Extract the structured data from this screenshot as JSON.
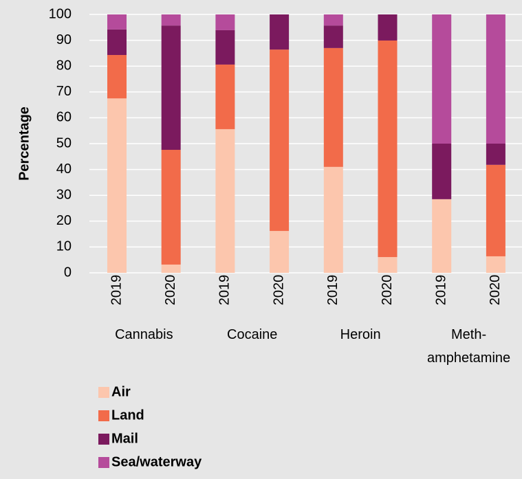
{
  "chart_data": {
    "type": "stacked_bar",
    "y_label": "Percentage",
    "categories": [
      "2019",
      "2020",
      "2019",
      "2020",
      "2019",
      "2020",
      "2019",
      "2020"
    ],
    "groups": [
      "Cannabis",
      "Cocaine",
      "Heroin",
      "Meth-amphetamine"
    ],
    "series": [
      {
        "name": "Air",
        "color": "#fcc6ad",
        "values": [
          67.5,
          3.2,
          55.6,
          16.2,
          41,
          6.1,
          28.5,
          6.4
        ]
      },
      {
        "name": "Land",
        "color": "#f26b4a",
        "values": [
          16.8,
          44.4,
          25,
          70.2,
          46,
          83.8,
          0,
          35.4
        ]
      },
      {
        "name": "Mail",
        "color": "#7b1a5e",
        "values": [
          9.9,
          48.1,
          13.3,
          13.6,
          8.7,
          10.1,
          21.5,
          8.2
        ]
      },
      {
        "name": "Sea/waterway",
        "color": "#b54b9b",
        "values": [
          5.8,
          4.3,
          6.1,
          0,
          4.3,
          0,
          50,
          50
        ]
      }
    ],
    "ylim": [
      0,
      100
    ],
    "yticks": [
      0,
      10,
      20,
      30,
      40,
      50,
      60,
      70,
      80,
      90,
      100
    ],
    "grid": true
  }
}
